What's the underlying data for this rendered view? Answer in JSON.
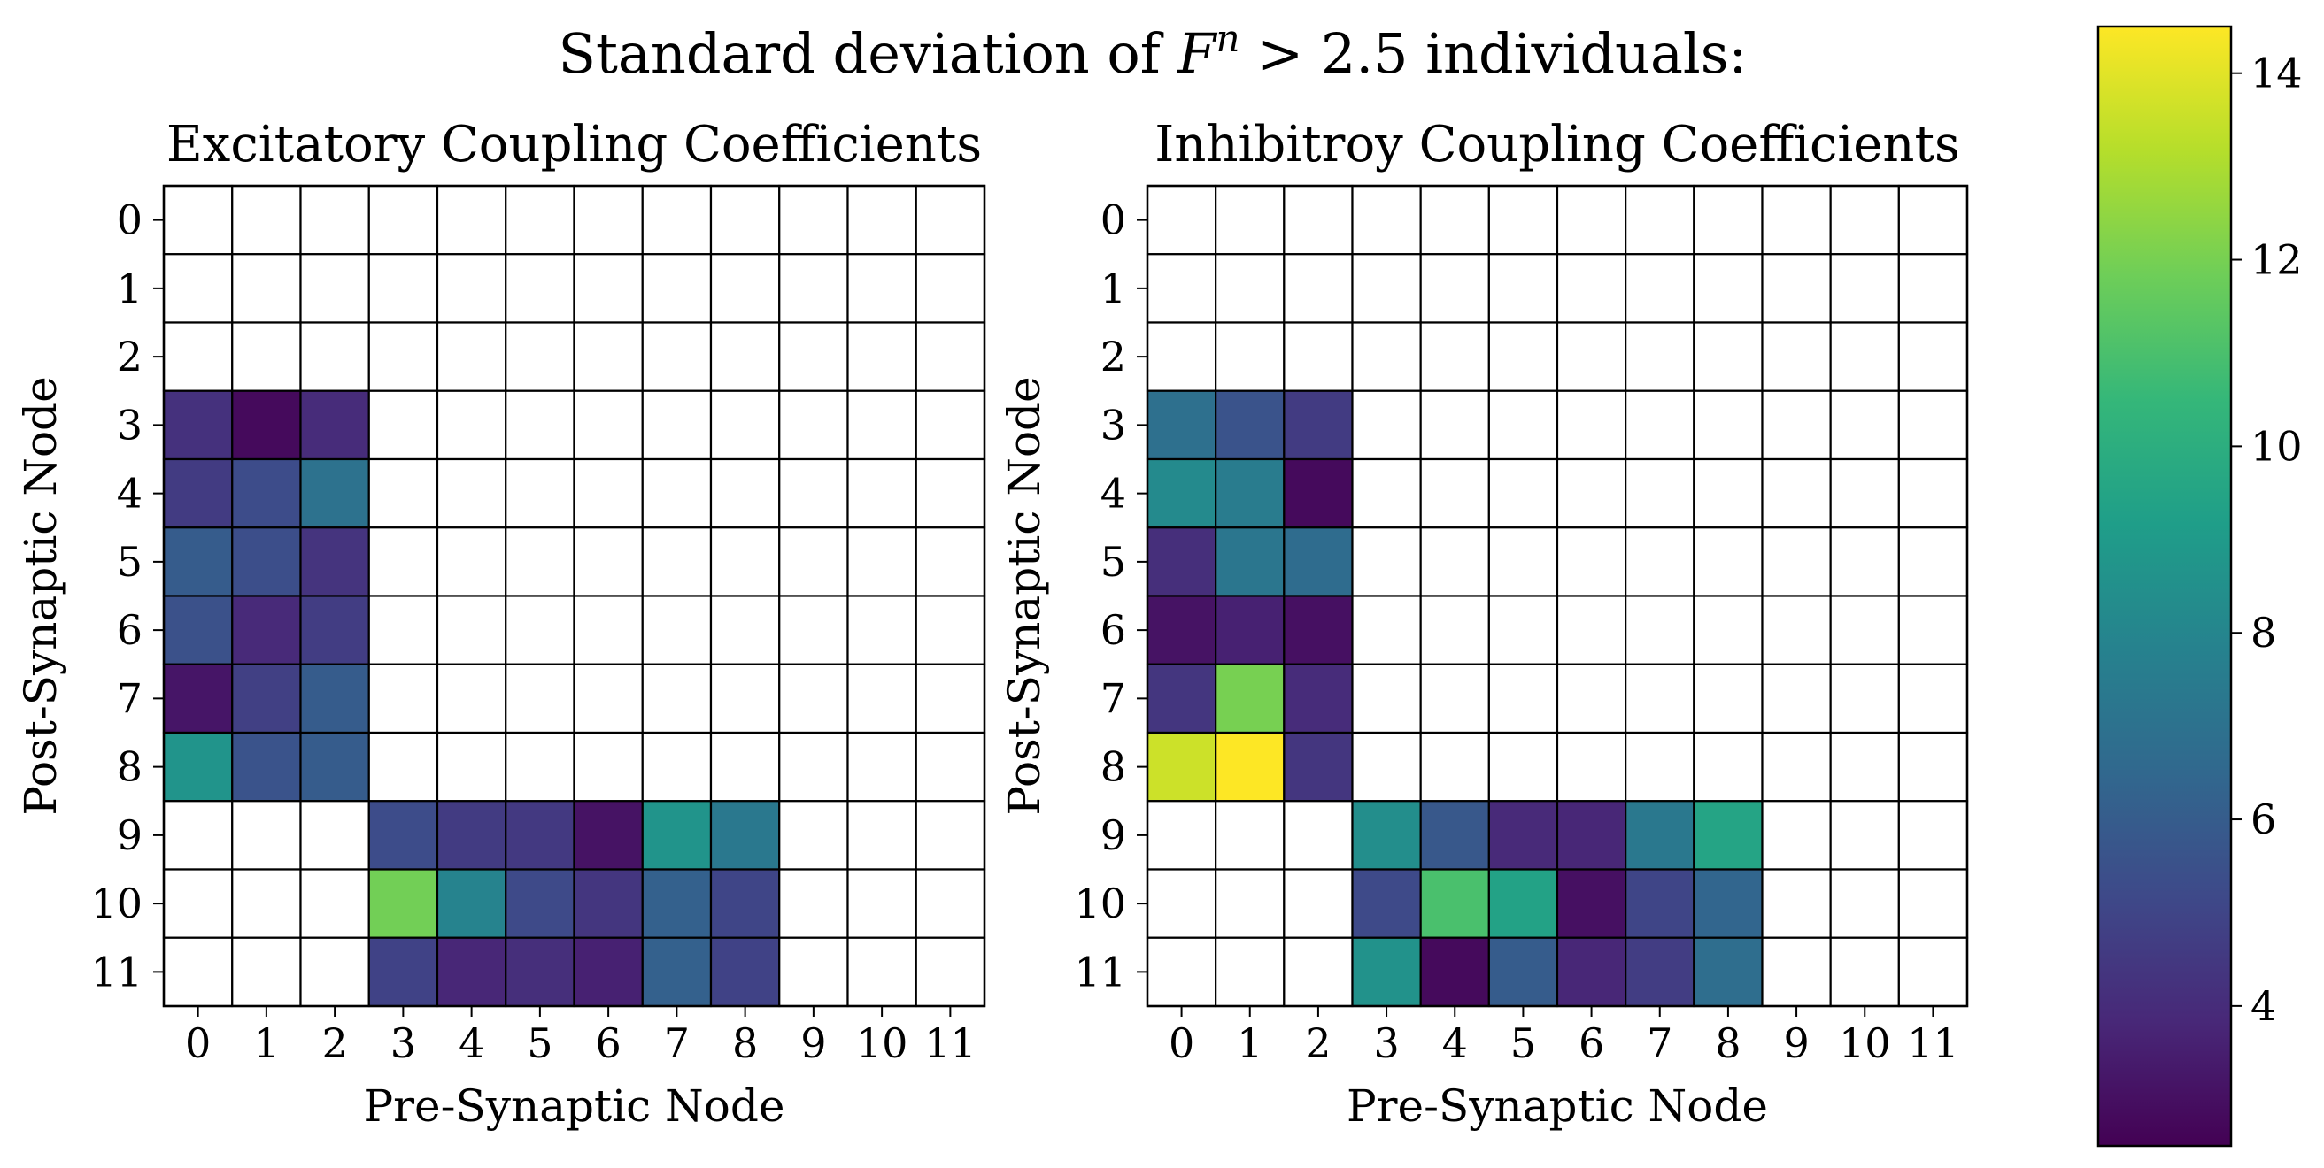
{
  "chart_data": {
    "type": "heatmap",
    "title": "Standard deviation of F^n > 2.5 individuals:",
    "title_parts": {
      "before": "Standard deviation of ",
      "var": "F",
      "sup": "n",
      "after": " > 2.5 individuals:"
    },
    "colormap": [
      "#440154",
      "#482878",
      "#3e4989",
      "#31688e",
      "#26828e",
      "#1f9e89",
      "#35b779",
      "#6ece58",
      "#b5de2b",
      "#fde725"
    ],
    "colorbar": {
      "min": 2.5,
      "max": 14.5,
      "ticks": [
        4,
        6,
        8,
        10,
        12,
        14
      ]
    },
    "panels": [
      {
        "title": "Excitatory Coupling Coefficients",
        "xlabel": "Pre-Synaptic Node",
        "ylabel": "Post-Synaptic Node",
        "x_ticks": [
          "0",
          "1",
          "2",
          "3",
          "4",
          "5",
          "6",
          "7",
          "8",
          "9",
          "10",
          "11"
        ],
        "y_ticks": [
          "0",
          "1",
          "2",
          "3",
          "4",
          "5",
          "6",
          "7",
          "8",
          "9",
          "10",
          "11"
        ],
        "values": [
          [
            null,
            null,
            null,
            null,
            null,
            null,
            null,
            null,
            null,
            null,
            null,
            null
          ],
          [
            null,
            null,
            null,
            null,
            null,
            null,
            null,
            null,
            null,
            null,
            null,
            null
          ],
          [
            null,
            null,
            null,
            null,
            null,
            null,
            null,
            null,
            null,
            null,
            null,
            null
          ],
          [
            4.2,
            2.8,
            4.0,
            null,
            null,
            null,
            null,
            null,
            null,
            null,
            null,
            null
          ],
          [
            4.6,
            5.3,
            7.0,
            null,
            null,
            null,
            null,
            null,
            null,
            null,
            null,
            null
          ],
          [
            6.0,
            5.4,
            4.3,
            null,
            null,
            null,
            null,
            null,
            null,
            null,
            null,
            null
          ],
          [
            5.5,
            3.9,
            4.7,
            null,
            null,
            null,
            null,
            null,
            null,
            null,
            null,
            null
          ],
          [
            3.2,
            4.8,
            6.0,
            null,
            null,
            null,
            null,
            null,
            null,
            null,
            null,
            null
          ],
          [
            8.7,
            5.6,
            6.0,
            null,
            null,
            null,
            null,
            null,
            null,
            null,
            null,
            null
          ],
          [
            null,
            null,
            null,
            5.3,
            4.6,
            4.5,
            3.1,
            8.7,
            7.3,
            null,
            null,
            null
          ],
          [
            null,
            null,
            null,
            11.9,
            7.9,
            5.2,
            4.4,
            6.2,
            5.0,
            null,
            null,
            null
          ],
          [
            null,
            null,
            null,
            4.9,
            3.8,
            4.1,
            3.6,
            6.2,
            4.9,
            null,
            null,
            null
          ]
        ]
      },
      {
        "title": "Inhibitroy Coupling Coefficients",
        "xlabel": "Pre-Synaptic Node",
        "ylabel": "Post-Synaptic Node",
        "x_ticks": [
          "0",
          "1",
          "2",
          "3",
          "4",
          "5",
          "6",
          "7",
          "8",
          "9",
          "10",
          "11"
        ],
        "y_ticks": [
          "0",
          "1",
          "2",
          "3",
          "4",
          "5",
          "6",
          "7",
          "8",
          "9",
          "10",
          "11"
        ],
        "values": [
          [
            null,
            null,
            null,
            null,
            null,
            null,
            null,
            null,
            null,
            null,
            null,
            null
          ],
          [
            null,
            null,
            null,
            null,
            null,
            null,
            null,
            null,
            null,
            null,
            null,
            null
          ],
          [
            null,
            null,
            null,
            null,
            null,
            null,
            null,
            null,
            null,
            null,
            null,
            null
          ],
          [
            6.9,
            5.6,
            4.6,
            null,
            null,
            null,
            null,
            null,
            null,
            null,
            null,
            null
          ],
          [
            8.2,
            7.5,
            2.8,
            null,
            null,
            null,
            null,
            null,
            null,
            null,
            null,
            null
          ],
          [
            4.1,
            7.2,
            6.7,
            null,
            null,
            null,
            null,
            null,
            null,
            null,
            null,
            null
          ],
          [
            3.1,
            3.6,
            3.0,
            null,
            null,
            null,
            null,
            null,
            null,
            null,
            null,
            null
          ],
          [
            4.4,
            12.0,
            4.0,
            null,
            null,
            null,
            null,
            null,
            null,
            null,
            null,
            null
          ],
          [
            13.6,
            14.5,
            4.4,
            null,
            null,
            null,
            null,
            null,
            null,
            null,
            null,
            null
          ],
          [
            null,
            null,
            null,
            8.4,
            5.8,
            3.9,
            3.8,
            7.3,
            9.5,
            null,
            null,
            null
          ],
          [
            null,
            null,
            null,
            5.2,
            11.0,
            9.4,
            3.0,
            5.0,
            6.4,
            null,
            null,
            null
          ],
          [
            null,
            null,
            null,
            8.6,
            2.8,
            6.0,
            3.8,
            4.7,
            6.8,
            null,
            null,
            null
          ]
        ]
      }
    ]
  }
}
